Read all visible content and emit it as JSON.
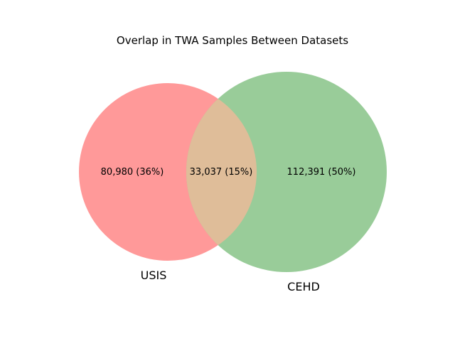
{
  "chart_data": {
    "type": "venn",
    "title": "Overlap in TWA Samples Between Datasets",
    "sets": [
      {
        "name": "USIS",
        "only_count": 80980,
        "only_label": "80,980 (36%)",
        "color": "#ff9999"
      },
      {
        "name": "CEHD",
        "only_count": 112391,
        "only_label": "112,391 (50%)",
        "color": "#99cc99"
      }
    ],
    "intersection": {
      "count": 33037,
      "label": "33,037 (15%)",
      "color": "#dfbd99"
    }
  }
}
